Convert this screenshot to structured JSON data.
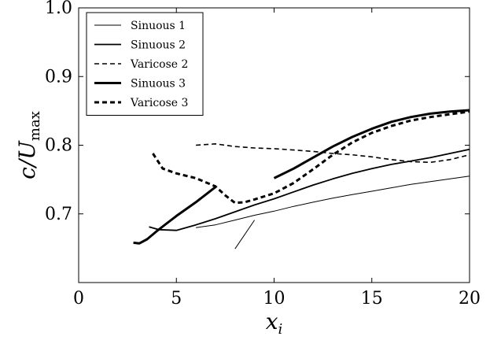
{
  "chart_data": {
    "type": "line",
    "title": "",
    "xlabel": "x_i",
    "ylabel": "c/U_max",
    "xlim": [
      0,
      20
    ],
    "ylim": [
      0.6,
      1.0
    ],
    "xticks": [
      "0",
      "5",
      "10",
      "15",
      "20"
    ],
    "yticks": [
      "0.7",
      "0.8",
      "0.9",
      "1.0"
    ],
    "legend_position": "top-left",
    "series": [
      {
        "name": "Sinuous 1",
        "style": "thin-solid",
        "segments": [
          {
            "x": [
              6,
              7,
              8,
              9,
              10,
              11,
              12,
              13,
              14,
              15,
              16,
              17,
              18,
              19,
              20
            ],
            "y": [
              0.68,
              0.684,
              0.691,
              0.698,
              0.704,
              0.711,
              0.717,
              0.723,
              0.728,
              0.733,
              0.738,
              0.743,
              0.747,
              0.751,
              0.755
            ]
          },
          {
            "x": [
              8,
              9
            ],
            "y": [
              0.649,
              0.691
            ]
          }
        ]
      },
      {
        "name": "Sinuous 2",
        "style": "medium-solid",
        "segments": [
          {
            "x": [
              3.6,
              4.1,
              5,
              6,
              7,
              8,
              9,
              10,
              11,
              12,
              13,
              14,
              15,
              16,
              17,
              18,
              19,
              20
            ],
            "y": [
              0.681,
              0.677,
              0.676,
              0.684,
              0.693,
              0.703,
              0.713,
              0.722,
              0.732,
              0.742,
              0.751,
              0.759,
              0.766,
              0.772,
              0.777,
              0.782,
              0.788,
              0.794
            ]
          }
        ]
      },
      {
        "name": "Varicose 2",
        "style": "thin-dashed",
        "segments": [
          {
            "x": [
              6,
              7,
              8,
              9,
              10,
              11,
              12,
              13,
              14,
              15,
              16,
              17,
              18,
              19,
              20
            ],
            "y": [
              0.8,
              0.802,
              0.798,
              0.796,
              0.795,
              0.793,
              0.791,
              0.788,
              0.786,
              0.783,
              0.779,
              0.776,
              0.775,
              0.779,
              0.786
            ]
          }
        ]
      },
      {
        "name": "Sinuous 3",
        "style": "thick-solid",
        "segments": [
          {
            "x": [
              2.8,
              3.1,
              3.5,
              4,
              4.5,
              5,
              5.5,
              6,
              6.5,
              7
            ],
            "y": [
              0.658,
              0.657,
              0.663,
              0.675,
              0.686,
              0.697,
              0.707,
              0.717,
              0.728,
              0.739
            ]
          },
          {
            "x": [
              10,
              11,
              12,
              13,
              14,
              15,
              16,
              17,
              18,
              19,
              20
            ],
            "y": [
              0.752,
              0.766,
              0.782,
              0.798,
              0.812,
              0.824,
              0.834,
              0.841,
              0.846,
              0.849,
              0.851
            ]
          }
        ]
      },
      {
        "name": "Varicose 3",
        "style": "thick-dashed",
        "segments": [
          {
            "x": [
              3.8,
              4.3,
              5,
              6,
              7,
              7.5,
              8,
              8.5,
              9,
              10,
              11,
              12,
              13,
              14,
              15,
              16,
              17,
              18,
              19,
              20
            ],
            "y": [
              0.788,
              0.766,
              0.759,
              0.752,
              0.74,
              0.727,
              0.716,
              0.717,
              0.721,
              0.73,
              0.745,
              0.765,
              0.786,
              0.804,
              0.818,
              0.828,
              0.836,
              0.841,
              0.845,
              0.849
            ]
          }
        ]
      }
    ]
  }
}
